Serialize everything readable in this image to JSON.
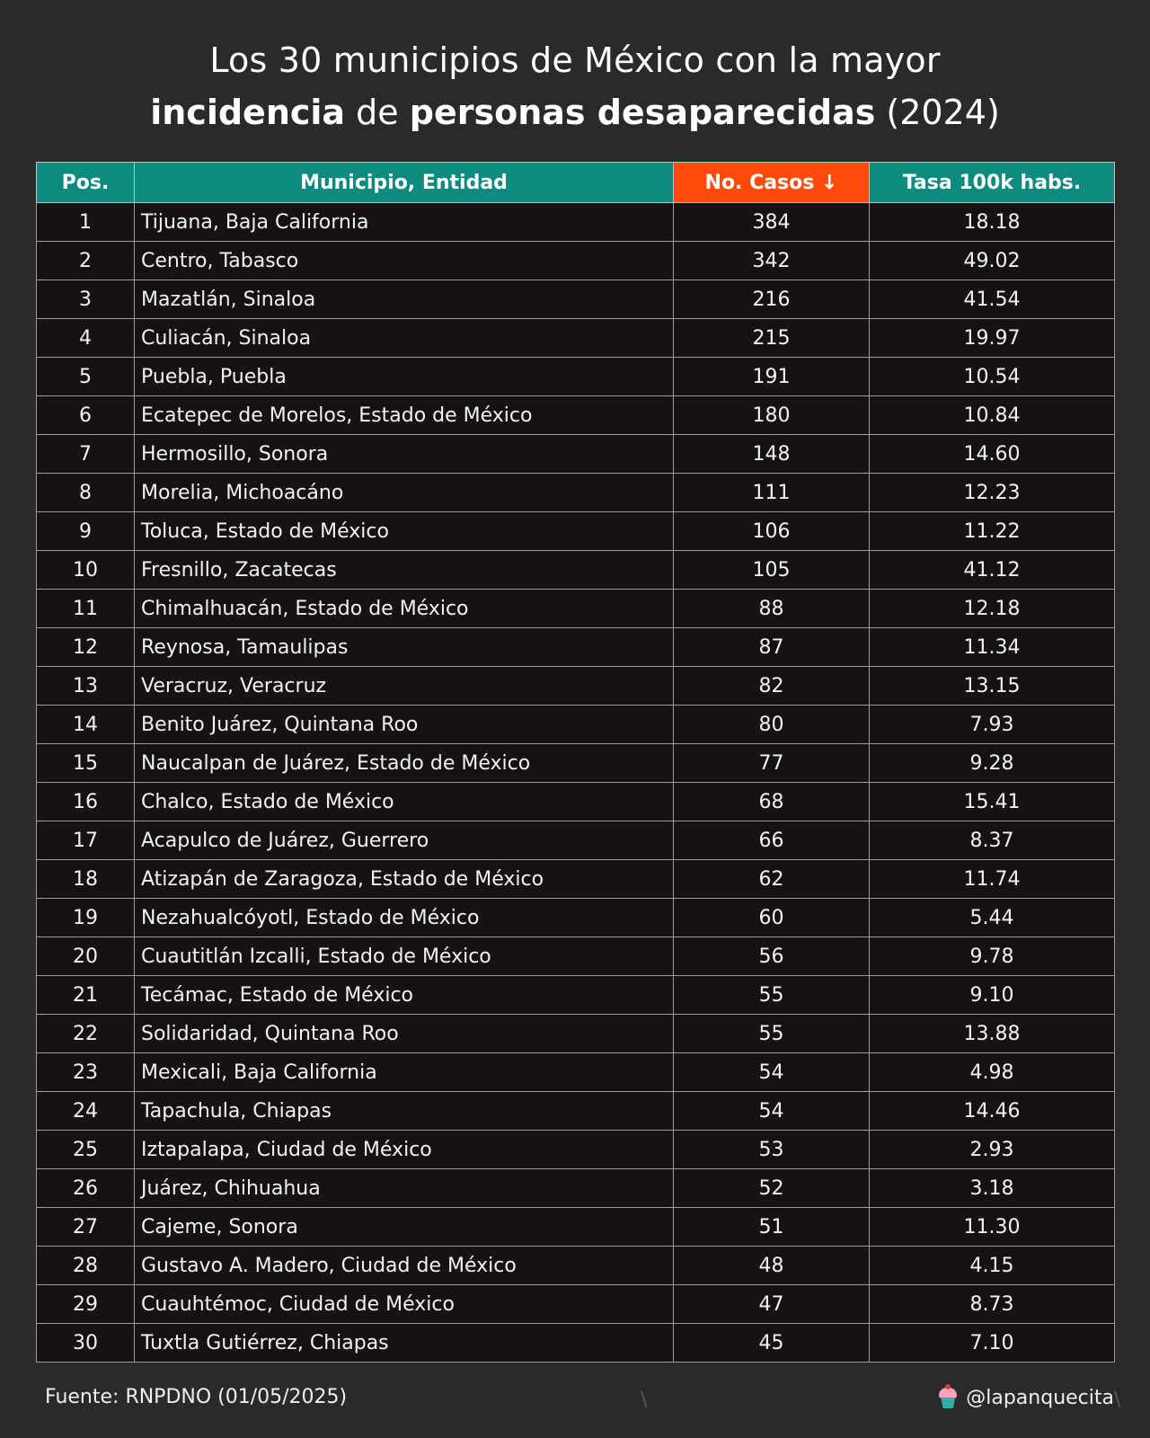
{
  "title": {
    "line1": "Los 30 municipios de México con la mayor",
    "line2_part1": "incidencia",
    "line2_part2": " de ",
    "line2_part3": "personas desaparecidas",
    "line2_part4": " (2024)"
  },
  "chart_data": {
    "type": "table",
    "columns": [
      "Pos.",
      "Municipio, Entidad",
      "No. Casos ↓",
      "Tasa 100k habs."
    ],
    "sorted_column": "No. Casos",
    "rows": [
      [
        "1",
        "Tijuana, Baja California",
        "384",
        "18.18"
      ],
      [
        "2",
        "Centro, Tabasco",
        "342",
        "49.02"
      ],
      [
        "3",
        "Mazatlán, Sinaloa",
        "216",
        "41.54"
      ],
      [
        "4",
        "Culiacán, Sinaloa",
        "215",
        "19.97"
      ],
      [
        "5",
        "Puebla, Puebla",
        "191",
        "10.54"
      ],
      [
        "6",
        "Ecatepec de Morelos, Estado de México",
        "180",
        "10.84"
      ],
      [
        "7",
        "Hermosillo, Sonora",
        "148",
        "14.60"
      ],
      [
        "8",
        "Morelia, Michoacáno",
        "111",
        "12.23"
      ],
      [
        "9",
        "Toluca, Estado de México",
        "106",
        "11.22"
      ],
      [
        "10",
        "Fresnillo, Zacatecas",
        "105",
        "41.12"
      ],
      [
        "11",
        "Chimalhuacán, Estado de México",
        "88",
        "12.18"
      ],
      [
        "12",
        "Reynosa, Tamaulipas",
        "87",
        "11.34"
      ],
      [
        "13",
        "Veracruz, Veracruz",
        "82",
        "13.15"
      ],
      [
        "14",
        "Benito Juárez, Quintana Roo",
        "80",
        "7.93"
      ],
      [
        "15",
        "Naucalpan de Juárez, Estado de México",
        "77",
        "9.28"
      ],
      [
        "16",
        "Chalco, Estado de México",
        "68",
        "15.41"
      ],
      [
        "17",
        "Acapulco de Juárez, Guerrero",
        "66",
        "8.37"
      ],
      [
        "18",
        "Atizapán de Zaragoza, Estado de México",
        "62",
        "11.74"
      ],
      [
        "19",
        "Nezahualcóyotl, Estado de México",
        "60",
        "5.44"
      ],
      [
        "20",
        "Cuautitlán Izcalli, Estado de México",
        "56",
        "9.78"
      ],
      [
        "21",
        "Tecámac, Estado de México",
        "55",
        "9.10"
      ],
      [
        "22",
        "Solidaridad, Quintana Roo",
        "55",
        "13.88"
      ],
      [
        "23",
        "Mexicali, Baja California",
        "54",
        "4.98"
      ],
      [
        "24",
        "Tapachula, Chiapas",
        "54",
        "14.46"
      ],
      [
        "25",
        "Iztapalapa, Ciudad de México",
        "53",
        "2.93"
      ],
      [
        "26",
        "Juárez, Chihuahua",
        "52",
        "3.18"
      ],
      [
        "27",
        "Cajeme, Sonora",
        "51",
        "11.30"
      ],
      [
        "28",
        "Gustavo A. Madero, Ciudad de México",
        "48",
        "4.15"
      ],
      [
        "29",
        "Cuauhtémoc, Ciudad de México",
        "47",
        "8.73"
      ],
      [
        "30",
        "Tuxtla Gutiérrez, Chiapas",
        "45",
        "7.10"
      ]
    ]
  },
  "footer": {
    "source": "Fuente: RNPDNO (01/05/2025)",
    "handle": "@lapanquecita",
    "handle_icon": "cupcake-icon"
  },
  "colors": {
    "background": "#2a2a2b",
    "header": "#0e8a7e",
    "sorted_header": "#ff4a0e",
    "cell": "#161213"
  }
}
